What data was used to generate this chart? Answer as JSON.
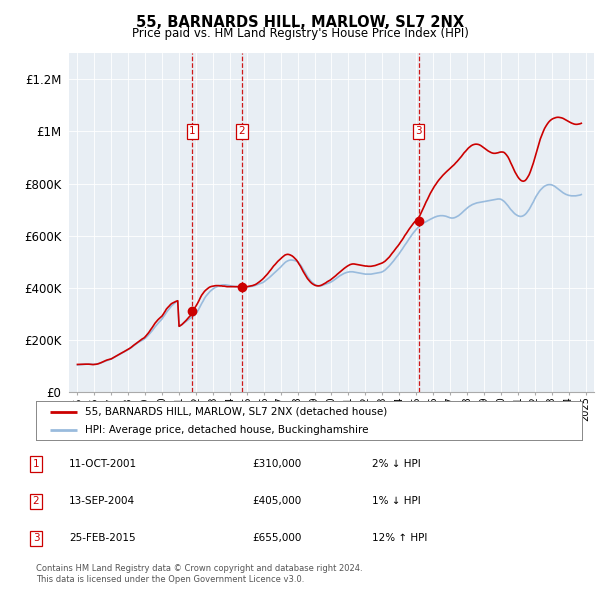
{
  "title": "55, BARNARDS HILL, MARLOW, SL7 2NX",
  "subtitle": "Price paid vs. HM Land Registry's House Price Index (HPI)",
  "legend_line1": "55, BARNARDS HILL, MARLOW, SL7 2NX (detached house)",
  "legend_line2": "HPI: Average price, detached house, Buckinghamshire",
  "footer1": "Contains HM Land Registry data © Crown copyright and database right 2024.",
  "footer2": "This data is licensed under the Open Government Licence v3.0.",
  "ylim": [
    0,
    1300000
  ],
  "yticks": [
    0,
    200000,
    400000,
    600000,
    800000,
    1000000,
    1200000
  ],
  "ytick_labels": [
    "£0",
    "£200K",
    "£400K",
    "£600K",
    "£800K",
    "£1M",
    "£1.2M"
  ],
  "xmin": 1994.5,
  "xmax": 2025.5,
  "xtick_years": [
    1995,
    1996,
    1997,
    1998,
    1999,
    2000,
    2001,
    2002,
    2003,
    2004,
    2005,
    2006,
    2007,
    2008,
    2009,
    2010,
    2011,
    2012,
    2013,
    2014,
    2015,
    2016,
    2017,
    2018,
    2019,
    2020,
    2021,
    2022,
    2023,
    2024,
    2025
  ],
  "sale_events": [
    {
      "num": 1,
      "date": "11-OCT-2001",
      "price": 310000,
      "x": 2001.78,
      "pct": "2%",
      "dir": "↓"
    },
    {
      "num": 2,
      "date": "13-SEP-2004",
      "price": 405000,
      "x": 2004.71,
      "pct": "1%",
      "dir": "↓"
    },
    {
      "num": 3,
      "date": "25-FEB-2015",
      "price": 655000,
      "x": 2015.15,
      "pct": "12%",
      "dir": "↑"
    }
  ],
  "hpi_color": "#99bbdd",
  "price_color": "#cc0000",
  "sale_marker_color": "#cc0000",
  "dashed_line_color": "#cc0000",
  "background_color": "#ffffff",
  "plot_bg_color": "#e8eef4",
  "grid_color": "#ffffff",
  "hpi_data_x": [
    1995.0,
    1995.08,
    1995.17,
    1995.25,
    1995.33,
    1995.42,
    1995.5,
    1995.58,
    1995.67,
    1995.75,
    1995.83,
    1995.92,
    1996.0,
    1996.08,
    1996.17,
    1996.25,
    1996.33,
    1996.42,
    1996.5,
    1996.58,
    1996.67,
    1996.75,
    1996.83,
    1996.92,
    1997.0,
    1997.08,
    1997.17,
    1997.25,
    1997.33,
    1997.42,
    1997.5,
    1997.58,
    1997.67,
    1997.75,
    1997.83,
    1997.92,
    1998.0,
    1998.08,
    1998.17,
    1998.25,
    1998.33,
    1998.42,
    1998.5,
    1998.58,
    1998.67,
    1998.75,
    1998.83,
    1998.92,
    1999.0,
    1999.08,
    1999.17,
    1999.25,
    1999.33,
    1999.42,
    1999.5,
    1999.58,
    1999.67,
    1999.75,
    1999.83,
    1999.92,
    2000.0,
    2000.08,
    2000.17,
    2000.25,
    2000.33,
    2000.42,
    2000.5,
    2000.58,
    2000.67,
    2000.75,
    2000.83,
    2000.92,
    2001.0,
    2001.08,
    2001.17,
    2001.25,
    2001.33,
    2001.42,
    2001.5,
    2001.58,
    2001.67,
    2001.75,
    2001.83,
    2001.92,
    2002.0,
    2002.08,
    2002.17,
    2002.25,
    2002.33,
    2002.42,
    2002.5,
    2002.58,
    2002.67,
    2002.75,
    2002.83,
    2002.92,
    2003.0,
    2003.08,
    2003.17,
    2003.25,
    2003.33,
    2003.42,
    2003.5,
    2003.58,
    2003.67,
    2003.75,
    2003.83,
    2003.92,
    2004.0,
    2004.08,
    2004.17,
    2004.25,
    2004.33,
    2004.42,
    2004.5,
    2004.58,
    2004.67,
    2004.75,
    2004.83,
    2004.92,
    2005.0,
    2005.08,
    2005.17,
    2005.25,
    2005.33,
    2005.42,
    2005.5,
    2005.58,
    2005.67,
    2005.75,
    2005.83,
    2005.92,
    2006.0,
    2006.08,
    2006.17,
    2006.25,
    2006.33,
    2006.42,
    2006.5,
    2006.58,
    2006.67,
    2006.75,
    2006.83,
    2006.92,
    2007.0,
    2007.08,
    2007.17,
    2007.25,
    2007.33,
    2007.42,
    2007.5,
    2007.58,
    2007.67,
    2007.75,
    2007.83,
    2007.92,
    2008.0,
    2008.08,
    2008.17,
    2008.25,
    2008.33,
    2008.42,
    2008.5,
    2008.58,
    2008.67,
    2008.75,
    2008.83,
    2008.92,
    2009.0,
    2009.08,
    2009.17,
    2009.25,
    2009.33,
    2009.42,
    2009.5,
    2009.58,
    2009.67,
    2009.75,
    2009.83,
    2009.92,
    2010.0,
    2010.08,
    2010.17,
    2010.25,
    2010.33,
    2010.42,
    2010.5,
    2010.58,
    2010.67,
    2010.75,
    2010.83,
    2010.92,
    2011.0,
    2011.08,
    2011.17,
    2011.25,
    2011.33,
    2011.42,
    2011.5,
    2011.58,
    2011.67,
    2011.75,
    2011.83,
    2011.92,
    2012.0,
    2012.08,
    2012.17,
    2012.25,
    2012.33,
    2012.42,
    2012.5,
    2012.58,
    2012.67,
    2012.75,
    2012.83,
    2012.92,
    2013.0,
    2013.08,
    2013.17,
    2013.25,
    2013.33,
    2013.42,
    2013.5,
    2013.58,
    2013.67,
    2013.75,
    2013.83,
    2013.92,
    2014.0,
    2014.08,
    2014.17,
    2014.25,
    2014.33,
    2014.42,
    2014.5,
    2014.58,
    2014.67,
    2014.75,
    2014.83,
    2014.92,
    2015.0,
    2015.08,
    2015.17,
    2015.25,
    2015.33,
    2015.42,
    2015.5,
    2015.58,
    2015.67,
    2015.75,
    2015.83,
    2015.92,
    2016.0,
    2016.08,
    2016.17,
    2016.25,
    2016.33,
    2016.42,
    2016.5,
    2016.58,
    2016.67,
    2016.75,
    2016.83,
    2016.92,
    2017.0,
    2017.08,
    2017.17,
    2017.25,
    2017.33,
    2017.42,
    2017.5,
    2017.58,
    2017.67,
    2017.75,
    2017.83,
    2017.92,
    2018.0,
    2018.08,
    2018.17,
    2018.25,
    2018.33,
    2018.42,
    2018.5,
    2018.58,
    2018.67,
    2018.75,
    2018.83,
    2018.92,
    2019.0,
    2019.08,
    2019.17,
    2019.25,
    2019.33,
    2019.42,
    2019.5,
    2019.58,
    2019.67,
    2019.75,
    2019.83,
    2019.92,
    2020.0,
    2020.08,
    2020.17,
    2020.25,
    2020.33,
    2020.42,
    2020.5,
    2020.58,
    2020.67,
    2020.75,
    2020.83,
    2020.92,
    2021.0,
    2021.08,
    2021.17,
    2021.25,
    2021.33,
    2021.42,
    2021.5,
    2021.58,
    2021.67,
    2021.75,
    2021.83,
    2021.92,
    2022.0,
    2022.08,
    2022.17,
    2022.25,
    2022.33,
    2022.42,
    2022.5,
    2022.58,
    2022.67,
    2022.75,
    2022.83,
    2022.92,
    2023.0,
    2023.08,
    2023.17,
    2023.25,
    2023.33,
    2023.42,
    2023.5,
    2023.58,
    2023.67,
    2023.75,
    2023.83,
    2023.92,
    2024.0,
    2024.08,
    2024.17,
    2024.25,
    2024.33,
    2024.42,
    2024.5,
    2024.58,
    2024.67,
    2024.75
  ],
  "hpi_data_y": [
    105000,
    105500,
    106000,
    106500,
    107000,
    107500,
    108000,
    108000,
    108000,
    108000,
    107500,
    107000,
    107500,
    108000,
    109000,
    110500,
    112000,
    114000,
    116000,
    118000,
    120000,
    122000,
    124000,
    126000,
    128000,
    131000,
    134000,
    137000,
    140000,
    143000,
    146000,
    149000,
    152000,
    155000,
    158000,
    161000,
    164000,
    167000,
    171000,
    175000,
    179000,
    183000,
    187000,
    191000,
    194000,
    197000,
    200000,
    203000,
    207000,
    212000,
    218000,
    224000,
    230000,
    237000,
    244000,
    251000,
    258000,
    264000,
    270000,
    276000,
    282000,
    290000,
    298000,
    306000,
    313000,
    320000,
    327000,
    333000,
    338000,
    343000,
    347000,
    350000,
    253000,
    256000,
    260000,
    264000,
    268000,
    272000,
    276000,
    280000,
    284000,
    288000,
    292000,
    296000,
    302000,
    310000,
    320000,
    330000,
    340000,
    350000,
    360000,
    368000,
    375000,
    381000,
    387000,
    392000,
    396000,
    400000,
    403000,
    406000,
    408000,
    410000,
    411000,
    412000,
    412000,
    412000,
    411000,
    410000,
    409000,
    408000,
    407000,
    406000,
    405000,
    405000,
    404000,
    404000,
    404000,
    404000,
    404000,
    404000,
    404000,
    404000,
    405000,
    406000,
    407000,
    408000,
    410000,
    412000,
    414000,
    416000,
    418000,
    420000,
    423000,
    427000,
    431000,
    435000,
    440000,
    445000,
    450000,
    455000,
    460000,
    465000,
    470000,
    475000,
    480000,
    486000,
    492000,
    497000,
    501000,
    504000,
    506000,
    507000,
    507000,
    506000,
    505000,
    503000,
    500000,
    495000,
    488000,
    480000,
    471000,
    462000,
    453000,
    444000,
    436000,
    429000,
    423000,
    418000,
    414000,
    411000,
    409000,
    408000,
    408000,
    409000,
    411000,
    413000,
    415000,
    417000,
    419000,
    421000,
    424000,
    427000,
    431000,
    435000,
    439000,
    443000,
    447000,
    450000,
    453000,
    456000,
    458000,
    460000,
    461000,
    462000,
    462000,
    462000,
    461000,
    460000,
    459000,
    458000,
    457000,
    456000,
    455000,
    454000,
    453000,
    453000,
    453000,
    453000,
    453000,
    454000,
    455000,
    456000,
    457000,
    458000,
    459000,
    460000,
    462000,
    465000,
    469000,
    474000,
    479000,
    485000,
    491000,
    497000,
    504000,
    511000,
    518000,
    525000,
    532000,
    540000,
    548000,
    556000,
    564000,
    572000,
    580000,
    588000,
    596000,
    604000,
    611000,
    618000,
    624000,
    630000,
    635000,
    640000,
    645000,
    648000,
    651000,
    654000,
    657000,
    660000,
    663000,
    666000,
    669000,
    671000,
    673000,
    675000,
    676000,
    677000,
    677000,
    677000,
    676000,
    675000,
    673000,
    671000,
    669000,
    668000,
    668000,
    669000,
    671000,
    674000,
    677000,
    681000,
    686000,
    691000,
    696000,
    701000,
    706000,
    710000,
    714000,
    717000,
    720000,
    722000,
    724000,
    726000,
    727000,
    728000,
    729000,
    730000,
    731000,
    732000,
    733000,
    734000,
    735000,
    736000,
    737000,
    738000,
    739000,
    740000,
    741000,
    741000,
    740000,
    737000,
    733000,
    728000,
    722000,
    715000,
    708000,
    701000,
    695000,
    689000,
    684000,
    680000,
    677000,
    675000,
    674000,
    675000,
    677000,
    681000,
    686000,
    693000,
    701000,
    710000,
    720000,
    730000,
    741000,
    751000,
    760000,
    768000,
    775000,
    781000,
    786000,
    790000,
    793000,
    795000,
    796000,
    796000,
    795000,
    793000,
    790000,
    786000,
    782000,
    778000,
    773000,
    769000,
    765000,
    762000,
    759000,
    757000,
    755000,
    754000,
    753000,
    753000,
    753000,
    753000,
    754000,
    755000,
    756000,
    758000
  ],
  "price_data_x": [
    1995.0,
    1995.08,
    1995.17,
    1995.25,
    1995.33,
    1995.42,
    1995.5,
    1995.58,
    1995.67,
    1995.75,
    1995.83,
    1995.92,
    1996.0,
    1996.08,
    1996.17,
    1996.25,
    1996.33,
    1996.42,
    1996.5,
    1996.58,
    1996.67,
    1996.75,
    1996.83,
    1996.92,
    1997.0,
    1997.08,
    1997.17,
    1997.25,
    1997.33,
    1997.42,
    1997.5,
    1997.58,
    1997.67,
    1997.75,
    1997.83,
    1997.92,
    1998.0,
    1998.08,
    1998.17,
    1998.25,
    1998.33,
    1998.42,
    1998.5,
    1998.58,
    1998.67,
    1998.75,
    1998.83,
    1998.92,
    1999.0,
    1999.08,
    1999.17,
    1999.25,
    1999.33,
    1999.42,
    1999.5,
    1999.58,
    1999.67,
    1999.75,
    1999.83,
    1999.92,
    2000.0,
    2000.08,
    2000.17,
    2000.25,
    2000.33,
    2000.42,
    2000.5,
    2000.58,
    2000.67,
    2000.75,
    2000.83,
    2000.92,
    2001.0,
    2001.08,
    2001.17,
    2001.25,
    2001.33,
    2001.42,
    2001.5,
    2001.58,
    2001.67,
    2001.75,
    2001.83,
    2001.92,
    2002.0,
    2002.08,
    2002.17,
    2002.25,
    2002.33,
    2002.42,
    2002.5,
    2002.58,
    2002.67,
    2002.75,
    2002.83,
    2002.92,
    2003.0,
    2003.08,
    2003.17,
    2003.25,
    2003.33,
    2003.42,
    2003.5,
    2003.58,
    2003.67,
    2003.75,
    2003.83,
    2003.92,
    2004.0,
    2004.08,
    2004.17,
    2004.25,
    2004.33,
    2004.42,
    2004.5,
    2004.58,
    2004.67,
    2004.75,
    2004.83,
    2004.92,
    2005.0,
    2005.08,
    2005.17,
    2005.25,
    2005.33,
    2005.42,
    2005.5,
    2005.58,
    2005.67,
    2005.75,
    2005.83,
    2005.92,
    2006.0,
    2006.08,
    2006.17,
    2006.25,
    2006.33,
    2006.42,
    2006.5,
    2006.58,
    2006.67,
    2006.75,
    2006.83,
    2006.92,
    2007.0,
    2007.08,
    2007.17,
    2007.25,
    2007.33,
    2007.42,
    2007.5,
    2007.58,
    2007.67,
    2007.75,
    2007.83,
    2007.92,
    2008.0,
    2008.08,
    2008.17,
    2008.25,
    2008.33,
    2008.42,
    2008.5,
    2008.58,
    2008.67,
    2008.75,
    2008.83,
    2008.92,
    2009.0,
    2009.08,
    2009.17,
    2009.25,
    2009.33,
    2009.42,
    2009.5,
    2009.58,
    2009.67,
    2009.75,
    2009.83,
    2009.92,
    2010.0,
    2010.08,
    2010.17,
    2010.25,
    2010.33,
    2010.42,
    2010.5,
    2010.58,
    2010.67,
    2010.75,
    2010.83,
    2010.92,
    2011.0,
    2011.08,
    2011.17,
    2011.25,
    2011.33,
    2011.42,
    2011.5,
    2011.58,
    2011.67,
    2011.75,
    2011.83,
    2011.92,
    2012.0,
    2012.08,
    2012.17,
    2012.25,
    2012.33,
    2012.42,
    2012.5,
    2012.58,
    2012.67,
    2012.75,
    2012.83,
    2012.92,
    2013.0,
    2013.08,
    2013.17,
    2013.25,
    2013.33,
    2013.42,
    2013.5,
    2013.58,
    2013.67,
    2013.75,
    2013.83,
    2013.92,
    2014.0,
    2014.08,
    2014.17,
    2014.25,
    2014.33,
    2014.42,
    2014.5,
    2014.58,
    2014.67,
    2014.75,
    2014.83,
    2014.92,
    2015.0,
    2015.08,
    2015.17,
    2015.25,
    2015.33,
    2015.42,
    2015.5,
    2015.58,
    2015.67,
    2015.75,
    2015.83,
    2015.92,
    2016.0,
    2016.08,
    2016.17,
    2016.25,
    2016.33,
    2016.42,
    2016.5,
    2016.58,
    2016.67,
    2016.75,
    2016.83,
    2016.92,
    2017.0,
    2017.08,
    2017.17,
    2017.25,
    2017.33,
    2017.42,
    2017.5,
    2017.58,
    2017.67,
    2017.75,
    2017.83,
    2017.92,
    2018.0,
    2018.08,
    2018.17,
    2018.25,
    2018.33,
    2018.42,
    2018.5,
    2018.58,
    2018.67,
    2018.75,
    2018.83,
    2018.92,
    2019.0,
    2019.08,
    2019.17,
    2019.25,
    2019.33,
    2019.42,
    2019.5,
    2019.58,
    2019.67,
    2019.75,
    2019.83,
    2019.92,
    2020.0,
    2020.08,
    2020.17,
    2020.25,
    2020.33,
    2020.42,
    2020.5,
    2020.58,
    2020.67,
    2020.75,
    2020.83,
    2020.92,
    2021.0,
    2021.08,
    2021.17,
    2021.25,
    2021.33,
    2021.42,
    2021.5,
    2021.58,
    2021.67,
    2021.75,
    2021.83,
    2021.92,
    2022.0,
    2022.08,
    2022.17,
    2022.25,
    2022.33,
    2022.42,
    2022.5,
    2022.58,
    2022.67,
    2022.75,
    2022.83,
    2022.92,
    2023.0,
    2023.08,
    2023.17,
    2023.25,
    2023.33,
    2023.42,
    2023.5,
    2023.58,
    2023.67,
    2023.75,
    2023.83,
    2023.92,
    2024.0,
    2024.08,
    2024.17,
    2024.25,
    2024.33,
    2024.42,
    2024.5,
    2024.58,
    2024.67,
    2024.75
  ],
  "price_data_y": [
    107000,
    107200,
    107400,
    107600,
    107800,
    108000,
    108000,
    108000,
    108000,
    107500,
    107000,
    106500,
    107000,
    107500,
    108500,
    110000,
    112000,
    114500,
    117000,
    119500,
    122000,
    124000,
    125500,
    127000,
    128500,
    131500,
    134500,
    138000,
    141000,
    144000,
    147000,
    150000,
    153000,
    156000,
    159000,
    162000,
    165000,
    168500,
    172500,
    177000,
    181000,
    185000,
    189000,
    193000,
    197000,
    201000,
    205000,
    208000,
    213000,
    219000,
    226000,
    233000,
    241000,
    249000,
    257000,
    265000,
    272000,
    278000,
    283000,
    288000,
    293000,
    301000,
    310000,
    319000,
    325000,
    331000,
    337000,
    341000,
    344000,
    347000,
    349000,
    351000,
    253000,
    256000,
    260000,
    265000,
    270000,
    276000,
    282000,
    288000,
    294000,
    310000,
    316000,
    323000,
    331000,
    340000,
    351000,
    362000,
    372000,
    380000,
    387000,
    392000,
    397000,
    401000,
    404000,
    406000,
    407000,
    408000,
    409000,
    409000,
    409000,
    408000,
    408000,
    407000,
    407000,
    406000,
    405000,
    405000,
    405000,
    405000,
    405000,
    405000,
    405000,
    405000,
    405000,
    405000,
    405000,
    405000,
    405000,
    405000,
    405000,
    406000,
    407000,
    408000,
    409000,
    411000,
    413000,
    416000,
    420000,
    424000,
    428000,
    433000,
    438000,
    444000,
    450000,
    456000,
    463000,
    470000,
    477000,
    484000,
    490000,
    496000,
    502000,
    507000,
    512000,
    517000,
    522000,
    526000,
    528000,
    529000,
    528000,
    526000,
    523000,
    519000,
    514000,
    508000,
    501000,
    492000,
    483000,
    473000,
    463000,
    453000,
    444000,
    436000,
    429000,
    423000,
    418000,
    414000,
    411000,
    409000,
    408000,
    408000,
    409000,
    411000,
    414000,
    417000,
    420000,
    424000,
    427000,
    430000,
    434000,
    438000,
    443000,
    447000,
    452000,
    457000,
    462000,
    466000,
    471000,
    475000,
    479000,
    483000,
    486000,
    489000,
    491000,
    492000,
    492000,
    491000,
    490000,
    489000,
    488000,
    487000,
    486000,
    485000,
    484000,
    484000,
    483000,
    483000,
    483000,
    484000,
    485000,
    486000,
    488000,
    490000,
    492000,
    494000,
    496000,
    499000,
    503000,
    508000,
    513000,
    519000,
    526000,
    533000,
    540000,
    547000,
    554000,
    561000,
    568000,
    576000,
    584000,
    592000,
    601000,
    609000,
    617000,
    625000,
    633000,
    640000,
    647000,
    654000,
    655000,
    663000,
    672000,
    682000,
    693000,
    705000,
    717000,
    729000,
    740000,
    751000,
    762000,
    772000,
    781000,
    790000,
    798000,
    806000,
    813000,
    820000,
    826000,
    832000,
    838000,
    843000,
    848000,
    853000,
    858000,
    863000,
    868000,
    873000,
    879000,
    885000,
    891000,
    897000,
    904000,
    911000,
    918000,
    924000,
    930000,
    936000,
    941000,
    945000,
    948000,
    950000,
    951000,
    951000,
    950000,
    948000,
    945000,
    941000,
    937000,
    933000,
    929000,
    925000,
    922000,
    919000,
    917000,
    916000,
    916000,
    917000,
    918000,
    920000,
    921000,
    921000,
    920000,
    916000,
    910000,
    902000,
    892000,
    880000,
    868000,
    856000,
    845000,
    835000,
    826000,
    819000,
    813000,
    810000,
    809000,
    811000,
    816000,
    824000,
    834000,
    847000,
    862000,
    879000,
    897000,
    916000,
    935000,
    954000,
    971000,
    986000,
    999000,
    1011000,
    1021000,
    1029000,
    1036000,
    1042000,
    1046000,
    1049000,
    1051000,
    1053000,
    1054000,
    1054000,
    1053000,
    1052000,
    1050000,
    1047000,
    1044000,
    1041000,
    1038000,
    1035000,
    1032000,
    1030000,
    1028000,
    1027000,
    1027000,
    1028000,
    1029000,
    1031000
  ]
}
